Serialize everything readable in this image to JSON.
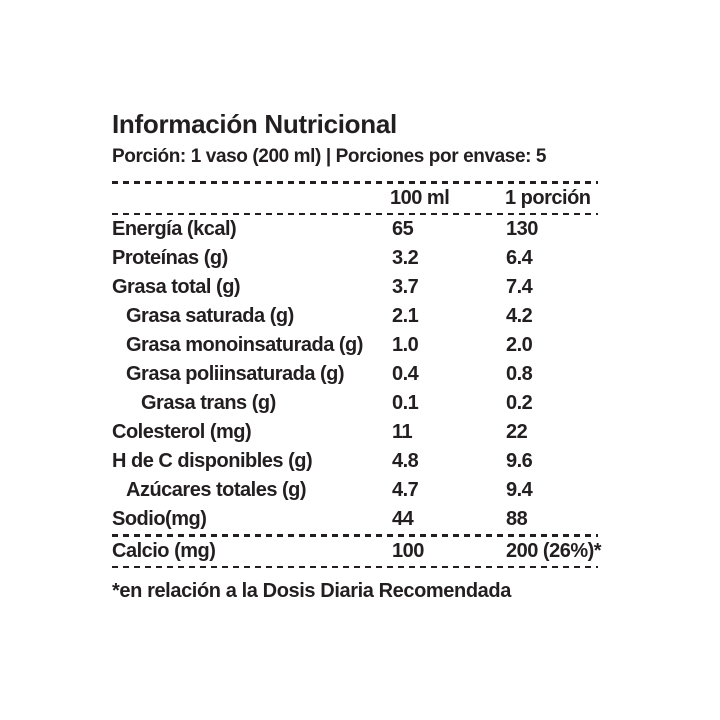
{
  "page": {
    "background_color": "#ffffff",
    "text_color": "#231f20"
  },
  "label": {
    "title": "Información Nutricional",
    "serving_info": "Porción: 1 vaso (200 ml) | Porciones por envase: 5",
    "columns": {
      "col1": "100 ml",
      "col2": "1 porción"
    },
    "rows": [
      {
        "name": "Energía (kcal)",
        "indent": 0,
        "per_100ml": "65",
        "per_porcion": "130"
      },
      {
        "name": "Proteínas (g)",
        "indent": 0,
        "per_100ml": "3.2",
        "per_porcion": "6.4"
      },
      {
        "name": "Grasa total (g)",
        "indent": 0,
        "per_100ml": "3.7",
        "per_porcion": "7.4"
      },
      {
        "name": "Grasa saturada (g)",
        "indent": 1,
        "per_100ml": "2.1",
        "per_porcion": "4.2"
      },
      {
        "name": "Grasa monoinsaturada (g)",
        "indent": 1,
        "per_100ml": "1.0",
        "per_porcion": "2.0"
      },
      {
        "name": "Grasa poliinsaturada (g)",
        "indent": 1,
        "per_100ml": "0.4",
        "per_porcion": "0.8"
      },
      {
        "name": "Grasa trans (g)",
        "indent": 2,
        "per_100ml": "0.1",
        "per_porcion": "0.2"
      },
      {
        "name": "Colesterol (mg)",
        "indent": 0,
        "per_100ml": "11",
        "per_porcion": "22"
      },
      {
        "name": "H de C disponibles (g)",
        "indent": 0,
        "per_100ml": "4.8",
        "per_porcion": "9.6"
      },
      {
        "name": "Azúcares totales (g)",
        "indent": 1,
        "per_100ml": "4.7",
        "per_porcion": "9.4"
      },
      {
        "name": "Sodio(mg)",
        "indent": 0,
        "per_100ml": "44",
        "per_porcion": "88"
      },
      {
        "name": "Calcio (mg)",
        "indent": 0,
        "per_100ml": "100",
        "per_porcion": "200 (26%)*"
      }
    ],
    "footnote": "*en relación a la Dosis Diaria Recomendada"
  }
}
